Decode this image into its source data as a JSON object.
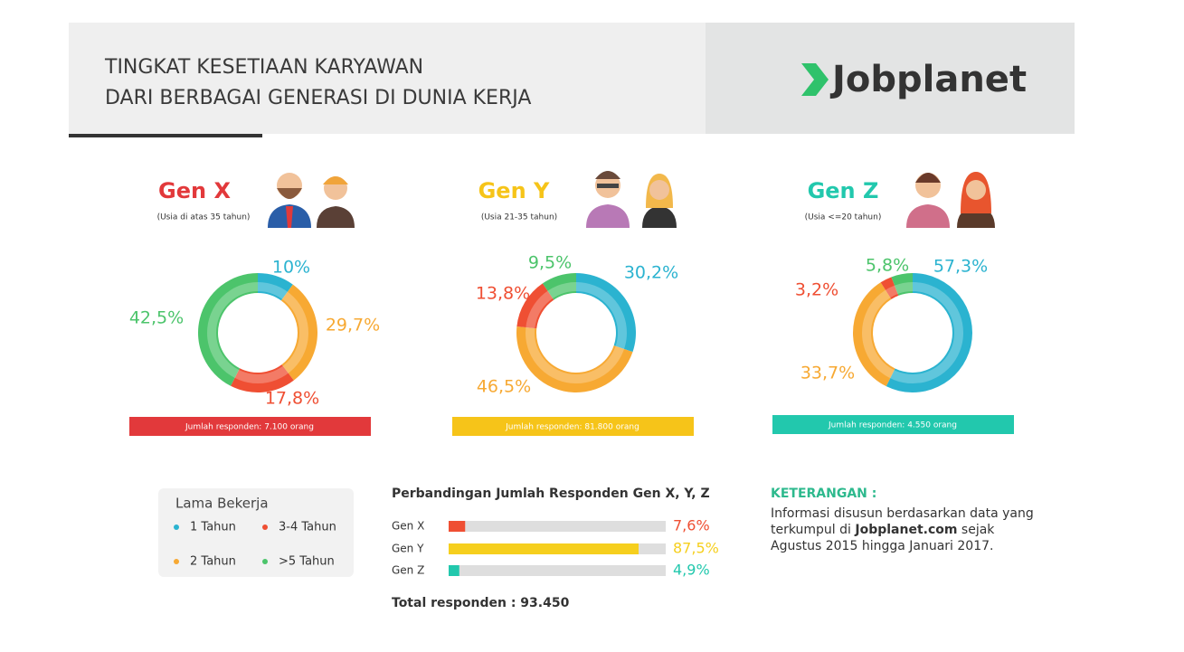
{
  "header": {
    "title": [
      "TINGKAT KESETIAAN KARYAWAN",
      "DARI BERBAGAI GENERASI DI DUNIA KERJA"
    ],
    "brand": "Jobplanet"
  },
  "chart_data": [
    {
      "type": "donut",
      "title": "Gen X",
      "subtitle": "(Usia di atas 35 tahun)",
      "color": "#e2393b",
      "categories": [
        "1 Tahun",
        "2 Tahun",
        "3-4 Tahun",
        ">5 Tahun"
      ],
      "colors": [
        "#2bb3d0",
        "#f7a933",
        "#ef4f33",
        "#4cc46b"
      ],
      "values": [
        10,
        29.7,
        17.8,
        42.5
      ],
      "value_labels": [
        "10%",
        "29,7%",
        "17,8%",
        "42,5%"
      ],
      "footer": "Jumlah responden: 7.100 orang"
    },
    {
      "type": "donut",
      "title": "Gen Y",
      "subtitle": "(Usia 21-35 tahun)",
      "color": "#f6c419",
      "categories": [
        "1 Tahun",
        "2 Tahun",
        "3-4 Tahun",
        ">5 Tahun"
      ],
      "colors": [
        "#2bb3d0",
        "#f7a933",
        "#ef4f33",
        "#4cc46b"
      ],
      "values": [
        30.2,
        46.5,
        13.8,
        9.5
      ],
      "value_labels": [
        "30,2%",
        "46,5%",
        "13,8%",
        "9,5%"
      ],
      "footer": "Jumlah responden: 81.800 orang"
    },
    {
      "type": "donut",
      "title": "Gen Z",
      "subtitle": "(Usia <=20 tahun)",
      "color": "#22c8ad",
      "categories": [
        "1 Tahun",
        "2 Tahun",
        "3-4 Tahun",
        ">5 Tahun"
      ],
      "colors": [
        "#2bb3d0",
        "#f7a933",
        "#ef4f33",
        "#4cc46b"
      ],
      "values": [
        57.3,
        33.7,
        3.2,
        5.8
      ],
      "value_labels": [
        "57,3%",
        "33,7%",
        "3,2%",
        "5,8%"
      ],
      "footer": "Jumlah responden: 4.550 orang"
    },
    {
      "type": "bar",
      "title": "Perbandingan Jumlah Responden Gen X, Y, Z",
      "categories": [
        "Gen X",
        "Gen Y",
        "Gen Z"
      ],
      "colors": [
        "#ef4f33",
        "#f6cf1e",
        "#22c8ad"
      ],
      "values": [
        7.6,
        87.5,
        4.9
      ],
      "value_labels": [
        "7,6%",
        "87,5%",
        "4,9%"
      ],
      "xlim": [
        0,
        100
      ],
      "footer": "Total responden : 93.450"
    }
  ],
  "legend": {
    "title": "Lama Bekerja"
  },
  "notes": {
    "title": "KETERANGAN :",
    "text": [
      "Informasi disusun berdasarkan data yang",
      "terkumpul di",
      "Jobplanet.com",
      "sejak",
      "Agustus 2015 hingga Januari 2017."
    ]
  }
}
